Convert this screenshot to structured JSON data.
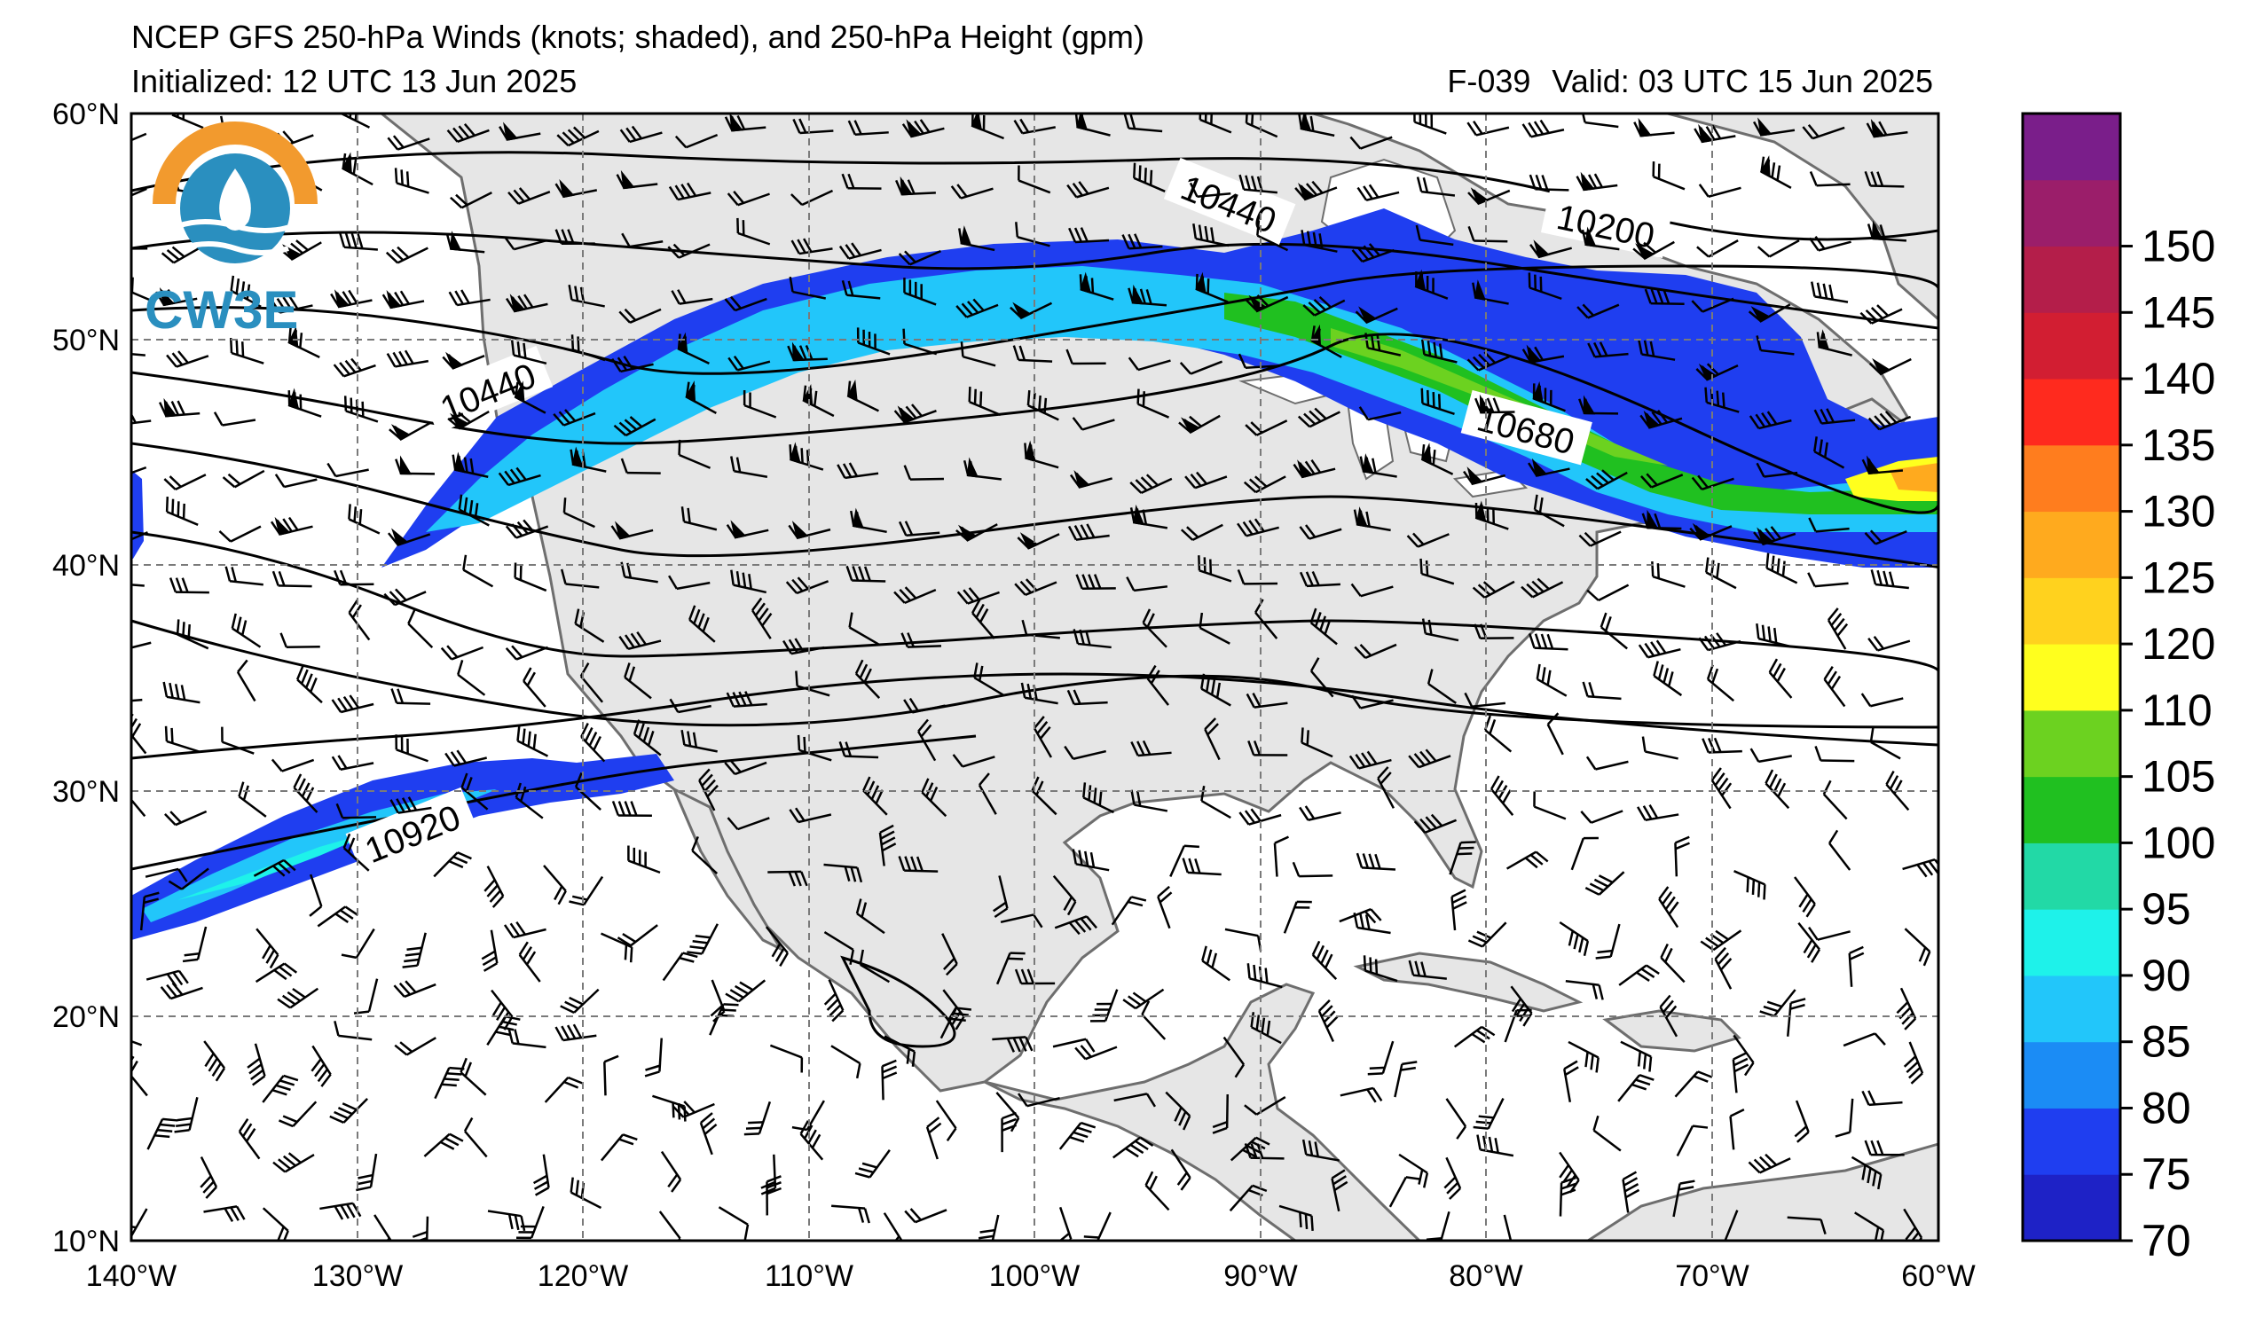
{
  "title": {
    "line1": "NCEP GFS 250-hPa Winds (knots; shaded), and 250-hPa Height (gpm)",
    "line2": "Initialized: 12 UTC 13 Jun 2025",
    "forecast_hour": "F-039",
    "valid": "Valid: 03 UTC 15 Jun 2025"
  },
  "logo": {
    "text": "CW3E"
  },
  "map": {
    "extent": {
      "lon": [
        -140,
        -60
      ],
      "lat": [
        10,
        60
      ]
    },
    "lat_ticks": [
      "10°N",
      "20°N",
      "30°N",
      "40°N",
      "50°N",
      "60°N"
    ],
    "lon_ticks": [
      "140°W",
      "130°W",
      "120°W",
      "110°W",
      "100°W",
      "90°W",
      "80°W",
      "70°W",
      "60°W"
    ],
    "grid": "dashed",
    "land_color": "#e6e6e6",
    "ocean_color": "#ffffff"
  },
  "contour_labels": [
    "10440",
    "10200",
    "10440",
    "10680",
    "10920"
  ],
  "colorbar": {
    "ticks": [
      "70",
      "75",
      "80",
      "85",
      "90",
      "95",
      "100",
      "105",
      "110",
      "120",
      "125",
      "130",
      "135",
      "140",
      "145",
      "150"
    ],
    "colors": [
      "#1e22c6",
      "#1f3ef0",
      "#1b8cf5",
      "#22c6fa",
      "#1ef2ea",
      "#22d9a6",
      "#20c020",
      "#6cd220",
      "#ffff1e",
      "#ffd21e",
      "#ffaa1e",
      "#ff7d1e",
      "#ff2a1e",
      "#d21e32",
      "#b41e4a",
      "#9b1e6a",
      "#7a1e8a"
    ]
  }
}
